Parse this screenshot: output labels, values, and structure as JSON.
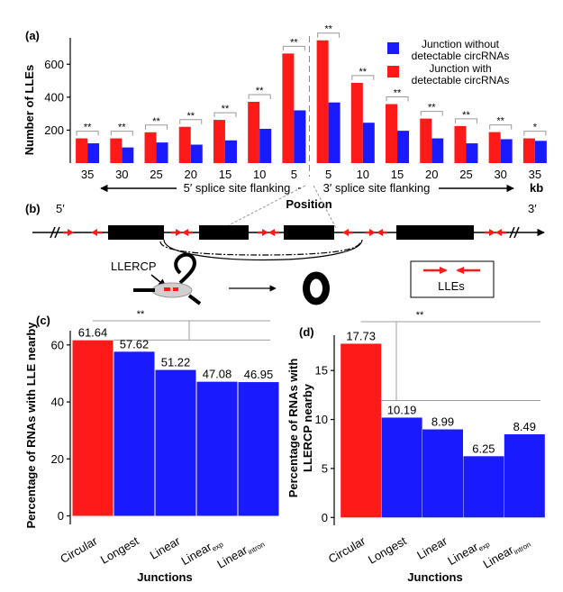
{
  "colors": {
    "red": "#ff1a1a",
    "blue": "#1a1aff",
    "grey": "#9e9e9e",
    "black": "#000000"
  },
  "chart_data": [
    {
      "panel": "(a)",
      "type": "bar",
      "ylabel": "Number of LLEs",
      "xlabel": "Position",
      "unit": "kb",
      "left_side_label": "5′ splice site flanking",
      "right_side_label": "3′ splice site flanking",
      "categories": [
        "35",
        "30",
        "25",
        "20",
        "15",
        "10",
        "5",
        "5",
        "10",
        "15",
        "20",
        "25",
        "30",
        "35"
      ],
      "yticks": [
        200,
        400,
        600
      ],
      "ylim": [
        0,
        760
      ],
      "series": [
        {
          "name": "Junction without detectable circRNAs",
          "color": "#1a1aff",
          "values": [
            120,
            95,
            125,
            112,
            138,
            208,
            320,
            368,
            245,
            196,
            150,
            120,
            145,
            135
          ]
        },
        {
          "name": "Junction with detectable circRNAs",
          "color": "#ff1a1a",
          "values": [
            150,
            150,
            187,
            220,
            262,
            372,
            665,
            745,
            487,
            358,
            270,
            225,
            188,
            150
          ]
        }
      ],
      "significance": [
        "**",
        "**",
        "**",
        "**",
        "**",
        "**",
        "**",
        "**",
        "**",
        "**",
        "**",
        "**",
        "**",
        "*"
      ]
    },
    {
      "panel": "(c)",
      "type": "bar",
      "ylabel": "Percentage of RNAs with LLE nearby",
      "xlabel": "Junctions",
      "categories": [
        {
          "main": "Circular",
          "sub": ""
        },
        {
          "main": "Longest",
          "sub": ""
        },
        {
          "main": "Linear",
          "sub": ""
        },
        {
          "main": "Linear",
          "sub": "exp"
        },
        {
          "main": "Linear",
          "sub": "intron"
        }
      ],
      "values": [
        61.64,
        57.62,
        51.22,
        47.08,
        46.95
      ],
      "value_labels": [
        "61.64",
        "57.62",
        "51.22",
        "47.08",
        "46.95"
      ],
      "colors": [
        "#ff1a1a",
        "#1a1aff",
        "#1a1aff",
        "#1a1aff",
        "#1a1aff"
      ],
      "yticks": [
        0,
        20,
        40,
        60
      ],
      "ylim": [
        -3,
        65
      ],
      "significance": "**"
    },
    {
      "panel": "(d)",
      "type": "bar",
      "ylabel_lines": [
        "Percentage of RNAs with",
        "LLERCP nearby"
      ],
      "xlabel": "Junctions",
      "categories": [
        {
          "main": "Circular",
          "sub": ""
        },
        {
          "main": "Longest",
          "sub": ""
        },
        {
          "main": "Linear",
          "sub": ""
        },
        {
          "main": "Linear",
          "sub": "exp"
        },
        {
          "main": "Linear",
          "sub": "intron"
        }
      ],
      "values": [
        17.73,
        10.19,
        8.99,
        6.25,
        8.49
      ],
      "value_labels": [
        "17.73",
        "10.19",
        "8.99",
        "6.25",
        "8.49"
      ],
      "colors": [
        "#ff1a1a",
        "#1a1aff",
        "#1a1aff",
        "#1a1aff",
        "#1a1aff"
      ],
      "yticks": [
        0,
        5,
        10,
        15
      ],
      "ylim": [
        -0.8,
        18.6
      ],
      "significance": "**"
    }
  ],
  "diagram": {
    "panel": "(b)",
    "five_prime": "5′",
    "three_prime": "3′",
    "llercp_label": "LLERCP",
    "lles_label": "LLEs"
  }
}
